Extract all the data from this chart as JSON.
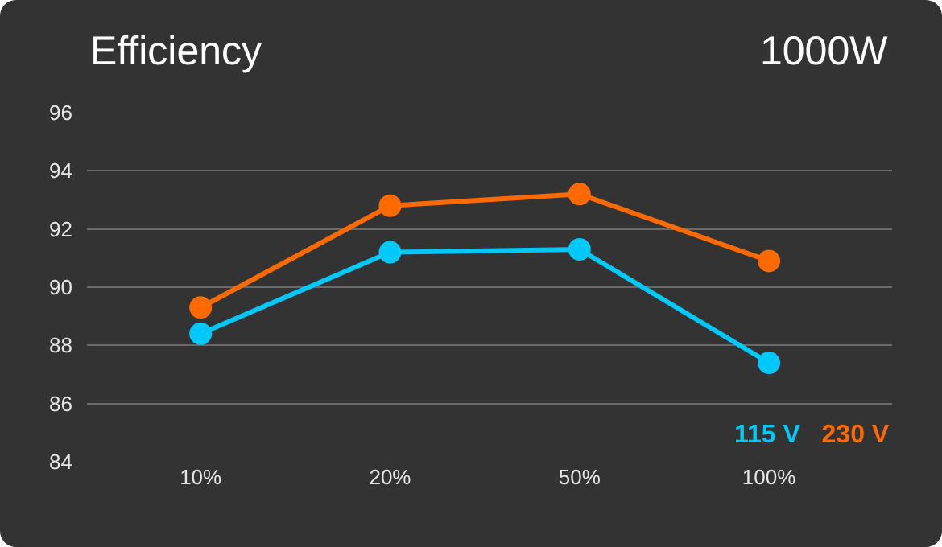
{
  "chart_data": {
    "type": "line",
    "title": "Efficiency",
    "subtitle": "1000W",
    "categories": [
      "10%",
      "20%",
      "50%",
      "100%"
    ],
    "series": [
      {
        "name": "115 V",
        "color": "#00c8fa",
        "values": [
          88.4,
          91.2,
          91.3,
          87.4
        ]
      },
      {
        "name": "230 V",
        "color": "#ff6a00",
        "values": [
          89.3,
          92.8,
          93.2,
          90.9
        ]
      }
    ],
    "ylim": [
      84,
      96
    ],
    "yticks": [
      84,
      86,
      88,
      90,
      92,
      94,
      96
    ],
    "grid": "y",
    "legend": "bottom right",
    "marker": "circle",
    "line_style": "solid"
  }
}
